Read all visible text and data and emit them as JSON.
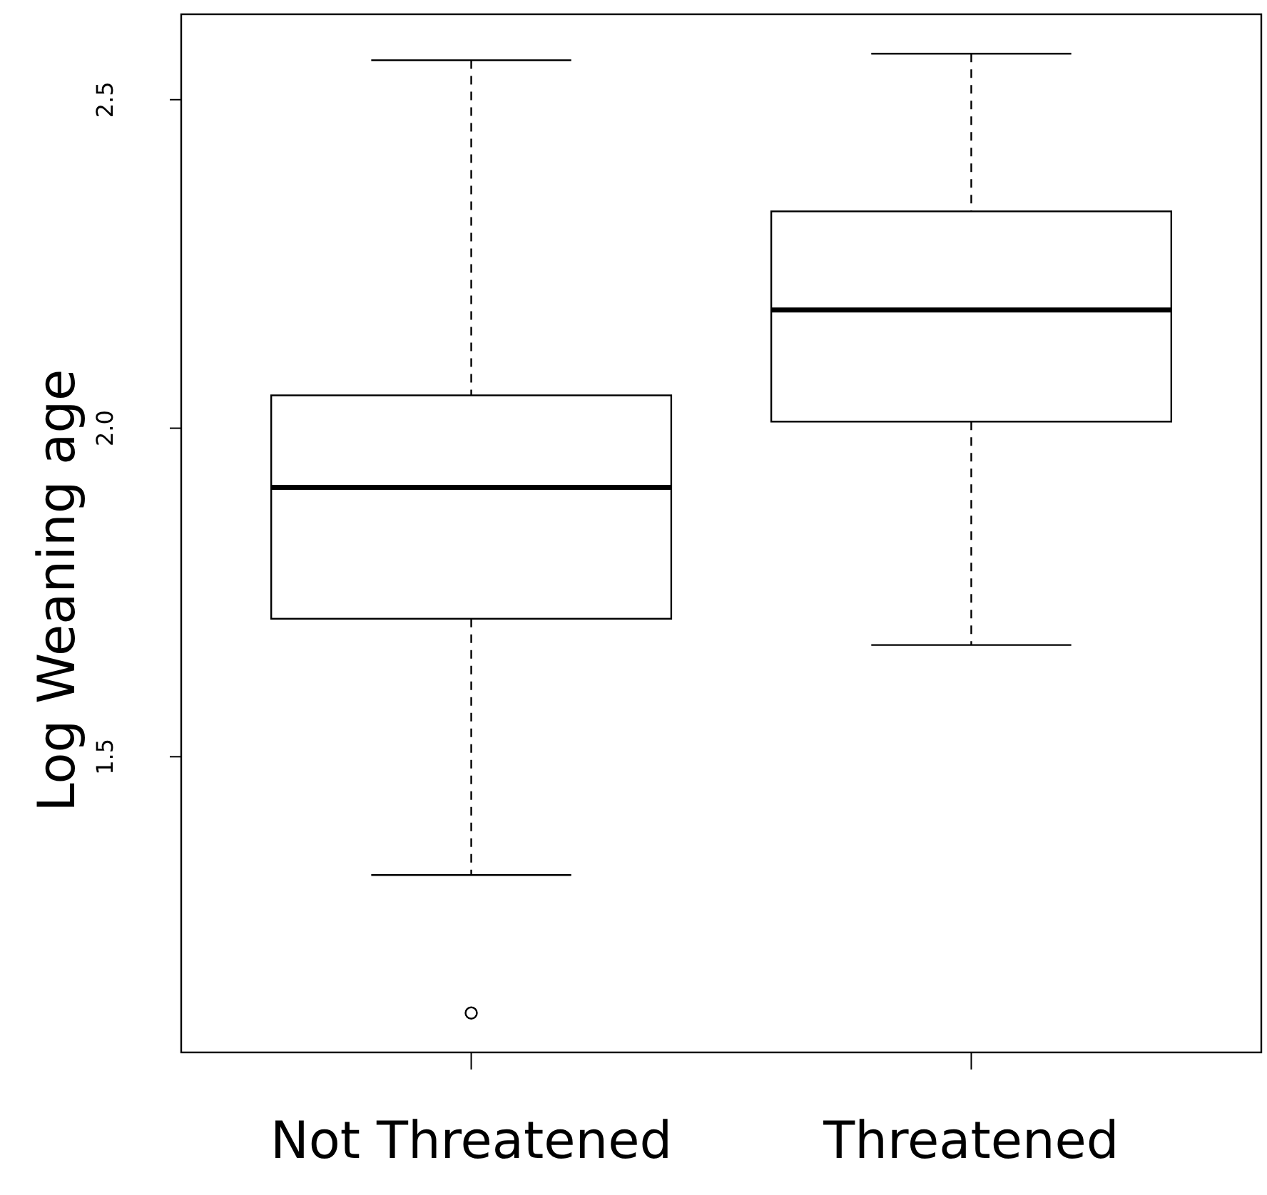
{
  "chart_data": {
    "type": "box",
    "ylabel": "Log Weaning age",
    "categories": [
      "Not Threatened",
      "Threatened"
    ],
    "boxes": [
      {
        "low": 1.32,
        "q1": 1.71,
        "median": 1.91,
        "q3": 2.05,
        "high": 2.56,
        "outliers": [
          1.11
        ]
      },
      {
        "low": 1.67,
        "q1": 2.01,
        "median": 2.18,
        "q3": 2.33,
        "high": 2.57
      }
    ],
    "ylim": [
      1.05,
      2.63
    ],
    "yticks": [
      {
        "value": 1.5,
        "label": "1.5"
      },
      {
        "value": 2,
        "label": "2.0"
      },
      {
        "value": 2.5,
        "label": "2.5"
      }
    ],
    "grid": false
  }
}
